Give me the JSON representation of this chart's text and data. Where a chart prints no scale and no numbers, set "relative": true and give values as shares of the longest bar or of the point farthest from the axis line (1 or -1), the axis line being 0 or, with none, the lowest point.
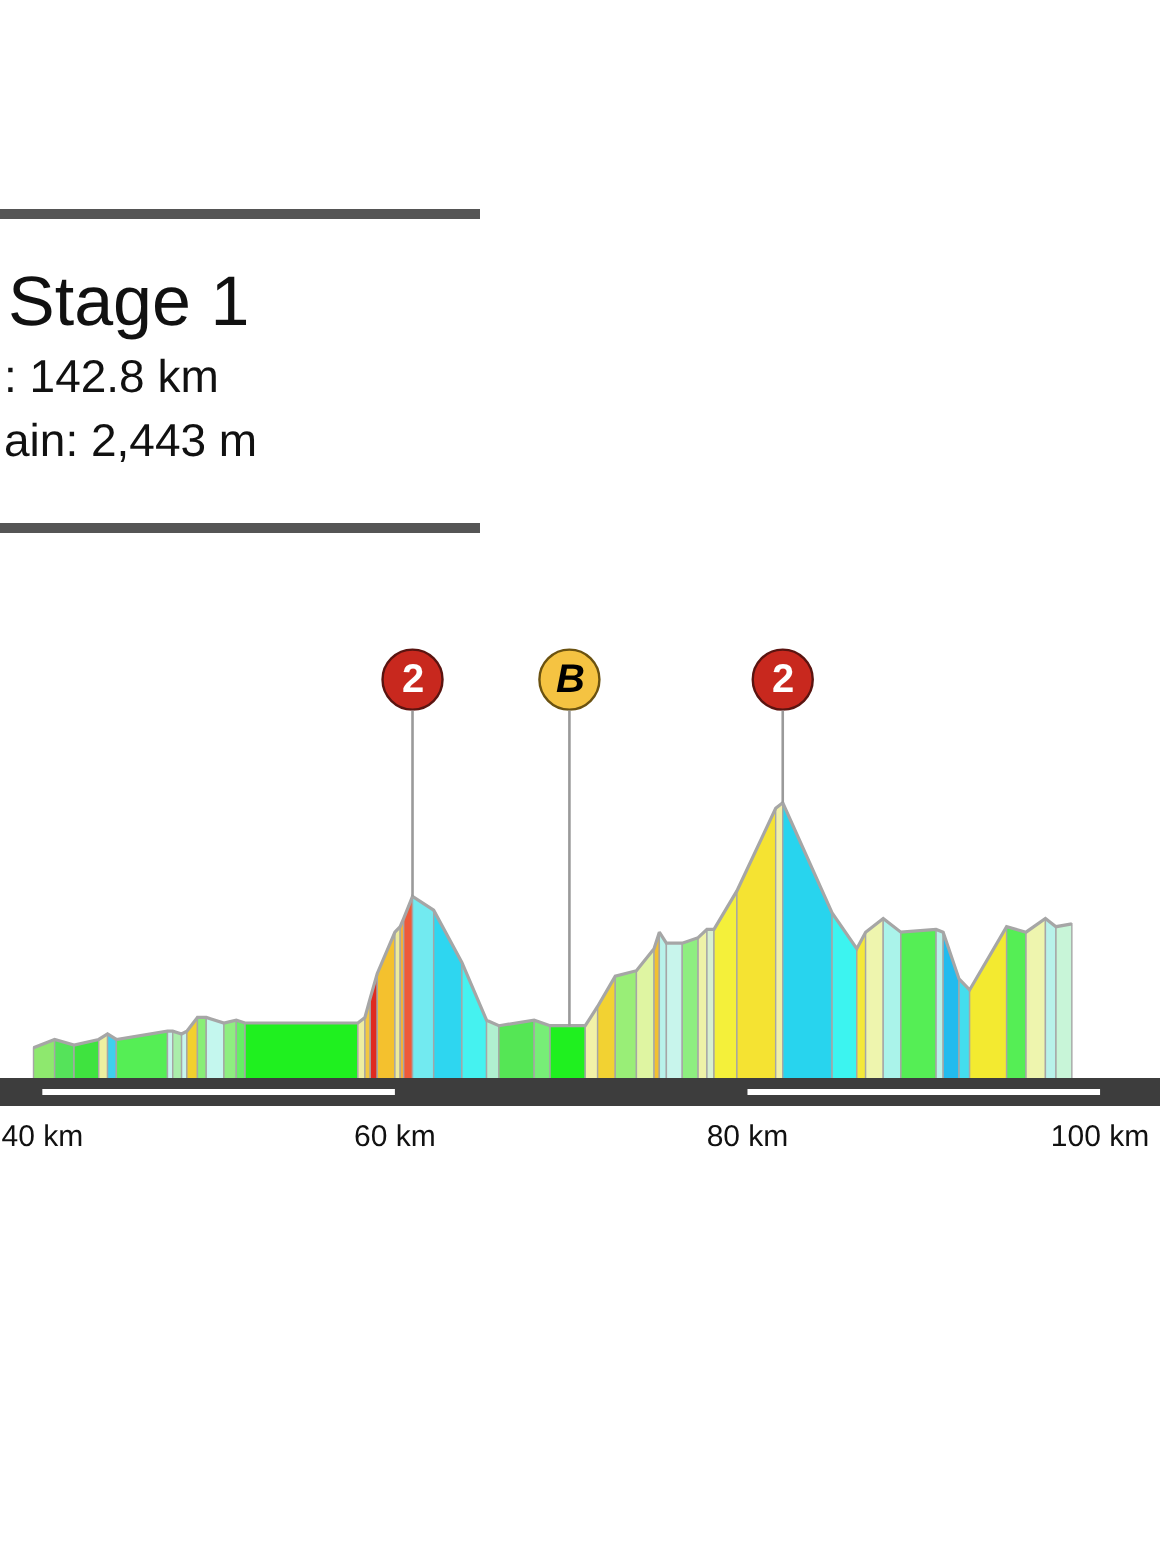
{
  "chart_data": {
    "type": "area",
    "title": "Stage 1",
    "annotations": [
      ": 142.8 km",
      "ain: 2,443 m",
      {
        "text": "2",
        "x": 61.0,
        "y": 0.66
      },
      {
        "text": "B",
        "x": 69.9,
        "y": 0.19
      },
      {
        "text": "2",
        "x": 82.0,
        "y": 1
      }
    ],
    "relative": true,
    "xlim": [
      37.6,
      103.4
    ],
    "xticks": [
      {
        "value": 40,
        "label": "40 km"
      },
      {
        "value": 60,
        "label": "60 km"
      },
      {
        "value": 80,
        "label": "80 km"
      },
      {
        "value": 100,
        "label": "100 km"
      }
    ],
    "series": [
      {
        "color": "#8ee86e",
        "x": [
          39.5,
          40.7
        ],
        "values": [
          0.11,
          0.14
        ]
      },
      {
        "color": "#55e35a",
        "x": [
          40.7,
          41.8
        ],
        "values": [
          0.14,
          0.12
        ]
      },
      {
        "color": "#3fe33f",
        "x": [
          41.8,
          43.2
        ],
        "values": [
          0.12,
          0.14
        ]
      },
      {
        "color": "#eef0a0",
        "x": [
          43.2,
          43.7
        ],
        "values": [
          0.14,
          0.16
        ]
      },
      {
        "color": "#3fd0ee",
        "x": [
          43.7,
          44.2
        ],
        "values": [
          0.16,
          0.14
        ]
      },
      {
        "color": "#55ee55",
        "x": [
          44.2,
          47.1
        ],
        "values": [
          0.14,
          0.17
        ]
      },
      {
        "color": "#c8f5ec",
        "x": [
          47.1,
          47.4
        ],
        "values": [
          0.17,
          0.17
        ]
      },
      {
        "color": "#aaeeaa",
        "x": [
          47.4,
          47.9
        ],
        "values": [
          0.17,
          0.16
        ]
      },
      {
        "color": "#c8f5ec",
        "x": [
          47.9,
          48.2
        ],
        "values": [
          0.16,
          0.17
        ]
      },
      {
        "color": "#f2d02e",
        "x": [
          48.2,
          48.8
        ],
        "values": [
          0.17,
          0.22
        ]
      },
      {
        "color": "#88ee77",
        "x": [
          48.8,
          49.3
        ],
        "values": [
          0.22,
          0.22
        ]
      },
      {
        "color": "#c4f7ee",
        "x": [
          49.3,
          50.3
        ],
        "values": [
          0.22,
          0.2
        ]
      },
      {
        "color": "#8eee80",
        "x": [
          50.3,
          51.0
        ],
        "values": [
          0.2,
          0.21
        ]
      },
      {
        "color": "#66ee66",
        "x": [
          51.0,
          51.5
        ],
        "values": [
          0.21,
          0.2
        ]
      },
      {
        "color": "#1ff01f",
        "x": [
          51.5,
          57.9
        ],
        "values": [
          0.2,
          0.2
        ]
      },
      {
        "color": "#eeeea0",
        "x": [
          57.9,
          58.3
        ],
        "values": [
          0.2,
          0.22
        ]
      },
      {
        "color": "#f3c840",
        "x": [
          58.3,
          58.6
        ],
        "values": [
          0.22,
          0.29
        ]
      },
      {
        "color": "#e02a20",
        "x": [
          58.6,
          59.0
        ],
        "values": [
          0.29,
          0.38
        ]
      },
      {
        "color": "#f4c12e",
        "x": [
          59.0,
          60.0
        ],
        "values": [
          0.38,
          0.53
        ]
      },
      {
        "color": "#eeeb9a",
        "x": [
          60.0,
          60.3
        ],
        "values": [
          0.53,
          0.55
        ]
      },
      {
        "color": "#f2b23a",
        "x": [
          60.3,
          60.5
        ],
        "values": [
          0.55,
          0.58
        ]
      },
      {
        "color": "#ee5a3a",
        "x": [
          60.5,
          61.0
        ],
        "values": [
          0.58,
          0.66
        ]
      },
      {
        "color": "#72eaf0",
        "x": [
          61.0,
          62.2
        ],
        "values": [
          0.66,
          0.61
        ]
      },
      {
        "color": "#2ed6f0",
        "x": [
          62.2,
          63.8
        ],
        "values": [
          0.61,
          0.42
        ]
      },
      {
        "color": "#45f2f0",
        "x": [
          63.8,
          65.2
        ],
        "values": [
          0.42,
          0.21
        ]
      },
      {
        "color": "#b0f0d0",
        "x": [
          65.2,
          65.9
        ],
        "values": [
          0.21,
          0.19
        ]
      },
      {
        "color": "#55e655",
        "x": [
          65.9,
          67.9
        ],
        "values": [
          0.19,
          0.21
        ]
      },
      {
        "color": "#77ee77",
        "x": [
          67.9,
          68.8
        ],
        "values": [
          0.21,
          0.19
        ]
      },
      {
        "color": "#1ff01f",
        "x": [
          68.8,
          70.8
        ],
        "values": [
          0.19,
          0.19
        ]
      },
      {
        "color": "#f2f2a8",
        "x": [
          70.8,
          71.5
        ],
        "values": [
          0.19,
          0.26
        ]
      },
      {
        "color": "#f2d232",
        "x": [
          71.5,
          72.5
        ],
        "values": [
          0.26,
          0.37
        ]
      },
      {
        "color": "#99ee77",
        "x": [
          72.5,
          73.7
        ],
        "values": [
          0.37,
          0.39
        ]
      },
      {
        "color": "#dff5a2",
        "x": [
          73.7,
          74.7
        ],
        "values": [
          0.39,
          0.47
        ]
      },
      {
        "color": "#f2c030",
        "x": [
          74.7,
          75.0
        ],
        "values": [
          0.47,
          0.53
        ]
      },
      {
        "color": "#b8f2ea",
        "x": [
          75.0,
          75.4
        ],
        "values": [
          0.53,
          0.49
        ]
      },
      {
        "color": "#c8f5ec",
        "x": [
          75.4,
          76.3
        ],
        "values": [
          0.49,
          0.49
        ]
      },
      {
        "color": "#8eee80",
        "x": [
          76.3,
          77.2
        ],
        "values": [
          0.49,
          0.51
        ]
      },
      {
        "color": "#eef2a8",
        "x": [
          77.2,
          77.7
        ],
        "values": [
          0.51,
          0.54
        ]
      },
      {
        "color": "#d8f0d0",
        "x": [
          77.7,
          78.1
        ],
        "values": [
          0.54,
          0.54
        ]
      },
      {
        "color": "#f4f03a",
        "x": [
          78.1,
          79.4
        ],
        "values": [
          0.54,
          0.68
        ]
      },
      {
        "color": "#f5e332",
        "x": [
          79.4,
          81.6
        ],
        "values": [
          0.68,
          0.98
        ]
      },
      {
        "color": "#f0f0a8",
        "x": [
          81.6,
          82.0
        ],
        "values": [
          0.98,
          1
        ]
      },
      {
        "color": "#28d4ee",
        "x": [
          82.0,
          84.8
        ],
        "values": [
          1,
          0.6
        ]
      },
      {
        "color": "#3cf4f0",
        "x": [
          84.8,
          86.2
        ],
        "values": [
          0.6,
          0.47
        ]
      },
      {
        "color": "#f4e83a",
        "x": [
          86.2,
          86.7
        ],
        "values": [
          0.47,
          0.53
        ]
      },
      {
        "color": "#eef5ae",
        "x": [
          86.7,
          87.7
        ],
        "values": [
          0.53,
          0.58
        ]
      },
      {
        "color": "#aaf3ea",
        "x": [
          87.7,
          88.7
        ],
        "values": [
          0.58,
          0.53
        ]
      },
      {
        "color": "#55ee55",
        "x": [
          88.7,
          90.7
        ],
        "values": [
          0.53,
          0.54
        ]
      },
      {
        "color": "#b8f2ea",
        "x": [
          90.7,
          91.1
        ],
        "values": [
          0.54,
          0.53
        ]
      },
      {
        "color": "#22bbee",
        "x": [
          91.1,
          92.0
        ],
        "values": [
          0.53,
          0.36
        ]
      },
      {
        "color": "#44ddee",
        "x": [
          92.0,
          92.6
        ],
        "values": [
          0.36,
          0.32
        ]
      },
      {
        "color": "#f3ea30",
        "x": [
          92.6,
          94.7
        ],
        "values": [
          0.32,
          0.55
        ]
      },
      {
        "color": "#55ee55",
        "x": [
          94.7,
          95.8
        ],
        "values": [
          0.55,
          0.53
        ]
      },
      {
        "color": "#eef5ae",
        "x": [
          95.8,
          96.9
        ],
        "values": [
          0.53,
          0.58
        ]
      },
      {
        "color": "#b8f2ea",
        "x": [
          96.9,
          97.5
        ],
        "values": [
          0.58,
          0.55
        ]
      },
      {
        "color": "#c8f5d8",
        "x": [
          97.5,
          98.4
        ],
        "values": [
          0.55,
          0.56
        ]
      },
      {
        "type": "line",
        "color": "#a6a6a6",
        "x": [
          39.5,
          40.7,
          41.8,
          43.2,
          43.7,
          44.2,
          47.1,
          47.4,
          47.9,
          48.2,
          48.8,
          49.3,
          50.3,
          51.0,
          51.5,
          57.9,
          58.3,
          58.6,
          59.0,
          60.0,
          60.3,
          60.5,
          61.0,
          62.2,
          63.8,
          65.2,
          65.9,
          67.9,
          68.8,
          70.8,
          71.5,
          72.5,
          73.7,
          74.7,
          75.0,
          75.4,
          76.3,
          77.2,
          77.7,
          78.1,
          79.4,
          81.6,
          82.0,
          84.8,
          86.2,
          86.7,
          87.7,
          88.7,
          90.7,
          91.1,
          92.0,
          92.6,
          94.7,
          95.8,
          96.9,
          97.5,
          98.4
        ],
        "values": [
          0.11,
          0.14,
          0.12,
          0.14,
          0.16,
          0.14,
          0.17,
          0.17,
          0.16,
          0.17,
          0.22,
          0.22,
          0.2,
          0.21,
          0.2,
          0.2,
          0.22,
          0.29,
          0.38,
          0.53,
          0.55,
          0.58,
          0.66,
          0.61,
          0.42,
          0.21,
          0.19,
          0.21,
          0.19,
          0.19,
          0.26,
          0.37,
          0.39,
          0.47,
          0.53,
          0.49,
          0.49,
          0.51,
          0.54,
          0.54,
          0.68,
          0.98,
          1,
          0.6,
          0.47,
          0.53,
          0.58,
          0.53,
          0.54,
          0.53,
          0.36,
          0.32,
          0.55,
          0.53,
          0.58,
          0.55,
          0.56
        ]
      }
    ]
  }
}
